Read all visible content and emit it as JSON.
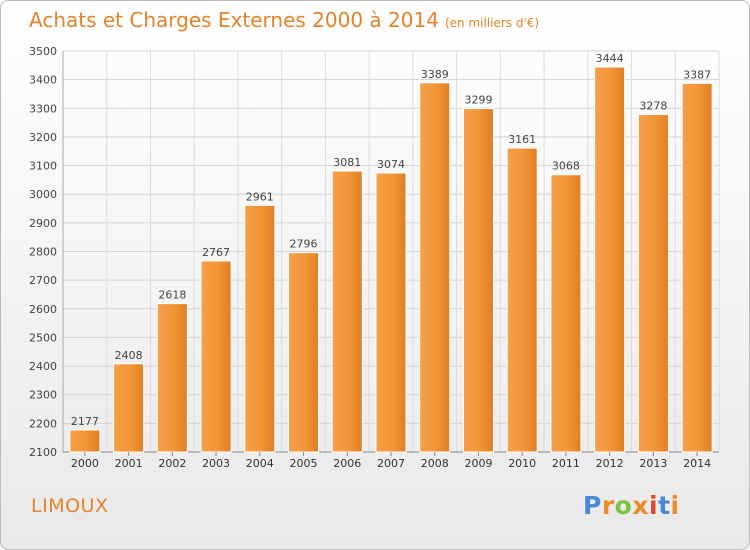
{
  "chart_data": {
    "type": "bar",
    "title": "Achats et Charges Externes 2000 à 2014",
    "subtitle": "(en milliers d'€)",
    "categories": [
      "2000",
      "2001",
      "2002",
      "2003",
      "2004",
      "2005",
      "2006",
      "2007",
      "2008",
      "2009",
      "2010",
      "2011",
      "2012",
      "2013",
      "2014"
    ],
    "values": [
      2177,
      2408,
      2618,
      2767,
      2961,
      2796,
      3081,
      3074,
      3389,
      3299,
      3161,
      3068,
      3444,
      3278,
      3387
    ],
    "ylim": [
      2100,
      3500
    ],
    "yticks": [
      2100,
      2200,
      2300,
      2400,
      2500,
      2600,
      2700,
      2800,
      2900,
      3000,
      3100,
      3200,
      3300,
      3400,
      3500
    ],
    "grid": true,
    "bar_color": "#f0922f"
  },
  "footer": {
    "commune": "LIMOUX",
    "logo": "Proxiti",
    "logo_colors": [
      "#4a88d8",
      "#f08a24",
      "#7cc242",
      "#f08a24",
      "#e2452a",
      "#4a88d8",
      "#f08a24"
    ]
  }
}
